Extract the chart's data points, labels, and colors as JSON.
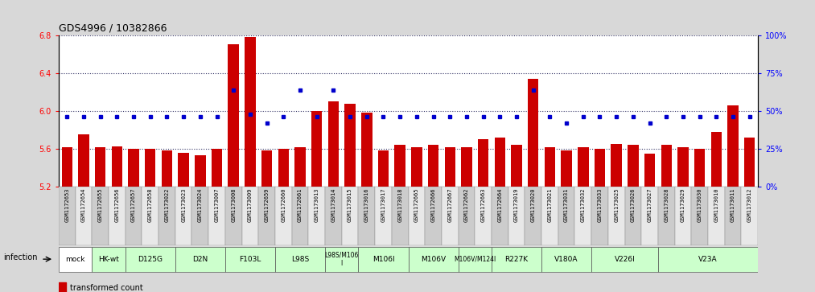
{
  "title": "GDS4996 / 10382866",
  "samples": [
    "GSM1172653",
    "GSM1172654",
    "GSM1172655",
    "GSM1172656",
    "GSM1172657",
    "GSM1172658",
    "GSM1173022",
    "GSM1173023",
    "GSM1173024",
    "GSM1173007",
    "GSM1173008",
    "GSM1173009",
    "GSM1172659",
    "GSM1172660",
    "GSM1172661",
    "GSM1173013",
    "GSM1173014",
    "GSM1173015",
    "GSM1173016",
    "GSM1173017",
    "GSM1173018",
    "GSM1172665",
    "GSM1172666",
    "GSM1172667",
    "GSM1172662",
    "GSM1172663",
    "GSM1172664",
    "GSM1173019",
    "GSM1173020",
    "GSM1173021",
    "GSM1173031",
    "GSM1173032",
    "GSM1173033",
    "GSM1173025",
    "GSM1173026",
    "GSM1173027",
    "GSM1173028",
    "GSM1173029",
    "GSM1173030",
    "GSM1173010",
    "GSM1173011",
    "GSM1173012"
  ],
  "bar_values": [
    5.62,
    5.75,
    5.62,
    5.63,
    5.6,
    5.6,
    5.58,
    5.56,
    5.53,
    5.6,
    6.7,
    6.78,
    5.58,
    5.6,
    5.62,
    6.0,
    6.1,
    6.08,
    5.98,
    5.58,
    5.64,
    5.62,
    5.64,
    5.62,
    5.62,
    5.7,
    5.72,
    5.64,
    6.34,
    5.62,
    5.58,
    5.62,
    5.6,
    5.65,
    5.64,
    5.55,
    5.64,
    5.62,
    5.6,
    5.78,
    6.06,
    5.72
  ],
  "percentile_values": [
    46,
    46,
    46,
    46,
    46,
    46,
    46,
    46,
    46,
    46,
    64,
    48,
    42,
    46,
    64,
    46,
    64,
    46,
    46,
    46,
    46,
    46,
    46,
    46,
    46,
    46,
    46,
    46,
    64,
    46,
    42,
    46,
    46,
    46,
    46,
    42,
    46,
    46,
    46,
    46,
    46,
    46
  ],
  "groups": [
    {
      "label": "mock",
      "start": 0,
      "end": 1,
      "color": "#ffffff"
    },
    {
      "label": "HK-wt",
      "start": 2,
      "end": 3,
      "color": "#ccffcc"
    },
    {
      "label": "D125G",
      "start": 4,
      "end": 6,
      "color": "#ccffcc"
    },
    {
      "label": "D2N",
      "start": 7,
      "end": 9,
      "color": "#ccffcc"
    },
    {
      "label": "F103L",
      "start": 10,
      "end": 12,
      "color": "#ccffcc"
    },
    {
      "label": "L98S",
      "start": 13,
      "end": 15,
      "color": "#ccffcc"
    },
    {
      "label": "L98S/M106\nI",
      "start": 16,
      "end": 17,
      "color": "#ccffcc"
    },
    {
      "label": "M106I",
      "start": 18,
      "end": 20,
      "color": "#ccffcc"
    },
    {
      "label": "M106V",
      "start": 21,
      "end": 23,
      "color": "#ccffcc"
    },
    {
      "label": "M106V/M124I",
      "start": 24,
      "end": 25,
      "color": "#ccffcc"
    },
    {
      "label": "R227K",
      "start": 26,
      "end": 28,
      "color": "#ccffcc"
    },
    {
      "label": "V180A",
      "start": 29,
      "end": 31,
      "color": "#ccffcc"
    },
    {
      "label": "V226I",
      "start": 32,
      "end": 35,
      "color": "#ccffcc"
    },
    {
      "label": "V23A",
      "start": 36,
      "end": 41,
      "color": "#ccffcc"
    }
  ],
  "ylim": [
    5.2,
    6.8
  ],
  "yticks_left": [
    5.2,
    5.6,
    6.0,
    6.4,
    6.8
  ],
  "yticks_right": [
    0,
    25,
    50,
    75,
    100
  ],
  "bar_color": "#cc0000",
  "dot_color": "#0000cc",
  "background_color": "#d8d8d8",
  "plot_bg_color": "#ffffff",
  "tick_fontsize": 7,
  "title_fontsize": 9
}
